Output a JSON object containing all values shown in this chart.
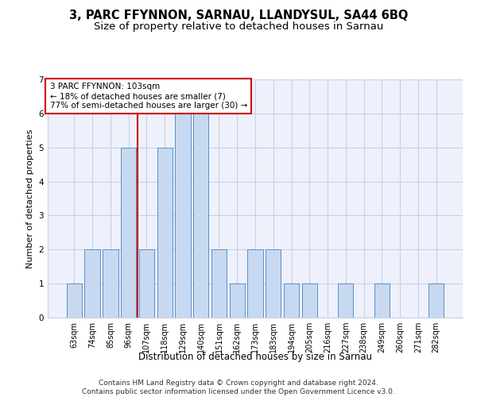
{
  "title": "3, PARC FFYNNON, SARNAU, LLANDYSUL, SA44 6BQ",
  "subtitle": "Size of property relative to detached houses in Sarnau",
  "xlabel": "Distribution of detached houses by size in Sarnau",
  "ylabel": "Number of detached properties",
  "bar_labels": [
    "63sqm",
    "74sqm",
    "85sqm",
    "96sqm",
    "107sqm",
    "118sqm",
    "129sqm",
    "140sqm",
    "151sqm",
    "162sqm",
    "173sqm",
    "183sqm",
    "194sqm",
    "205sqm",
    "216sqm",
    "227sqm",
    "238sqm",
    "249sqm",
    "260sqm",
    "271sqm",
    "282sqm"
  ],
  "bar_values": [
    1,
    2,
    2,
    5,
    2,
    5,
    6,
    6,
    2,
    1,
    2,
    2,
    1,
    1,
    0,
    1,
    0,
    1,
    0,
    0,
    1
  ],
  "bar_color": "#c7d9f0",
  "bar_edge_color": "#5b8fc9",
  "annotation_box_text": "3 PARC FFYNNON: 103sqm\n← 18% of detached houses are smaller (7)\n77% of semi-detached houses are larger (30) →",
  "vline_x_index": 3.5,
  "vline_color": "#cc0000",
  "ylim": [
    0,
    7
  ],
  "yticks": [
    0,
    1,
    2,
    3,
    4,
    5,
    6,
    7
  ],
  "grid_color": "#c8cfe8",
  "background_color": "#eef1fb",
  "footer_text": "Contains HM Land Registry data © Crown copyright and database right 2024.\nContains public sector information licensed under the Open Government Licence v3.0.",
  "title_fontsize": 10.5,
  "subtitle_fontsize": 9.5,
  "xlabel_fontsize": 8.5,
  "ylabel_fontsize": 8,
  "tick_fontsize": 7,
  "annotation_fontsize": 7.5,
  "footer_fontsize": 6.5
}
